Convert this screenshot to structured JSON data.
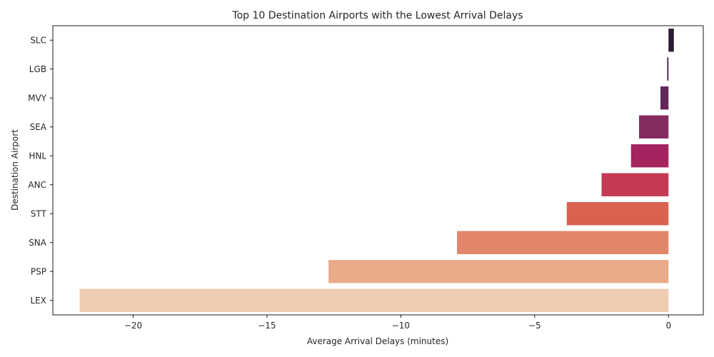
{
  "chart_data": {
    "type": "bar",
    "orientation": "horizontal",
    "title": "Top 10 Destination Airports with the Lowest Arrival Delays",
    "xlabel": "Average Arrival Delays (minutes)",
    "ylabel": "Destination Airport",
    "categories": [
      "SLC",
      "LGB",
      "MVY",
      "SEA",
      "HNL",
      "ANC",
      "STT",
      "SNA",
      "PSP",
      "LEX"
    ],
    "values": [
      0.2,
      -0.05,
      -0.3,
      -1.1,
      -1.4,
      -2.5,
      -3.8,
      -7.9,
      -12.7,
      -22.0
    ],
    "colors": [
      "#2b1a31",
      "#4a1f49",
      "#622658",
      "#842b60",
      "#a3245f",
      "#c43a54",
      "#d9614f",
      "#e2866a",
      "#e9aa8a",
      "#f0ccb3"
    ],
    "xticks": [
      -20,
      -15,
      -10,
      -5,
      0
    ],
    "xtick_labels": [
      "−20",
      "−15",
      "−10",
      "−5",
      "0"
    ],
    "xlim": [
      -23.0,
      1.3
    ],
    "grid": false,
    "legend": false
  }
}
